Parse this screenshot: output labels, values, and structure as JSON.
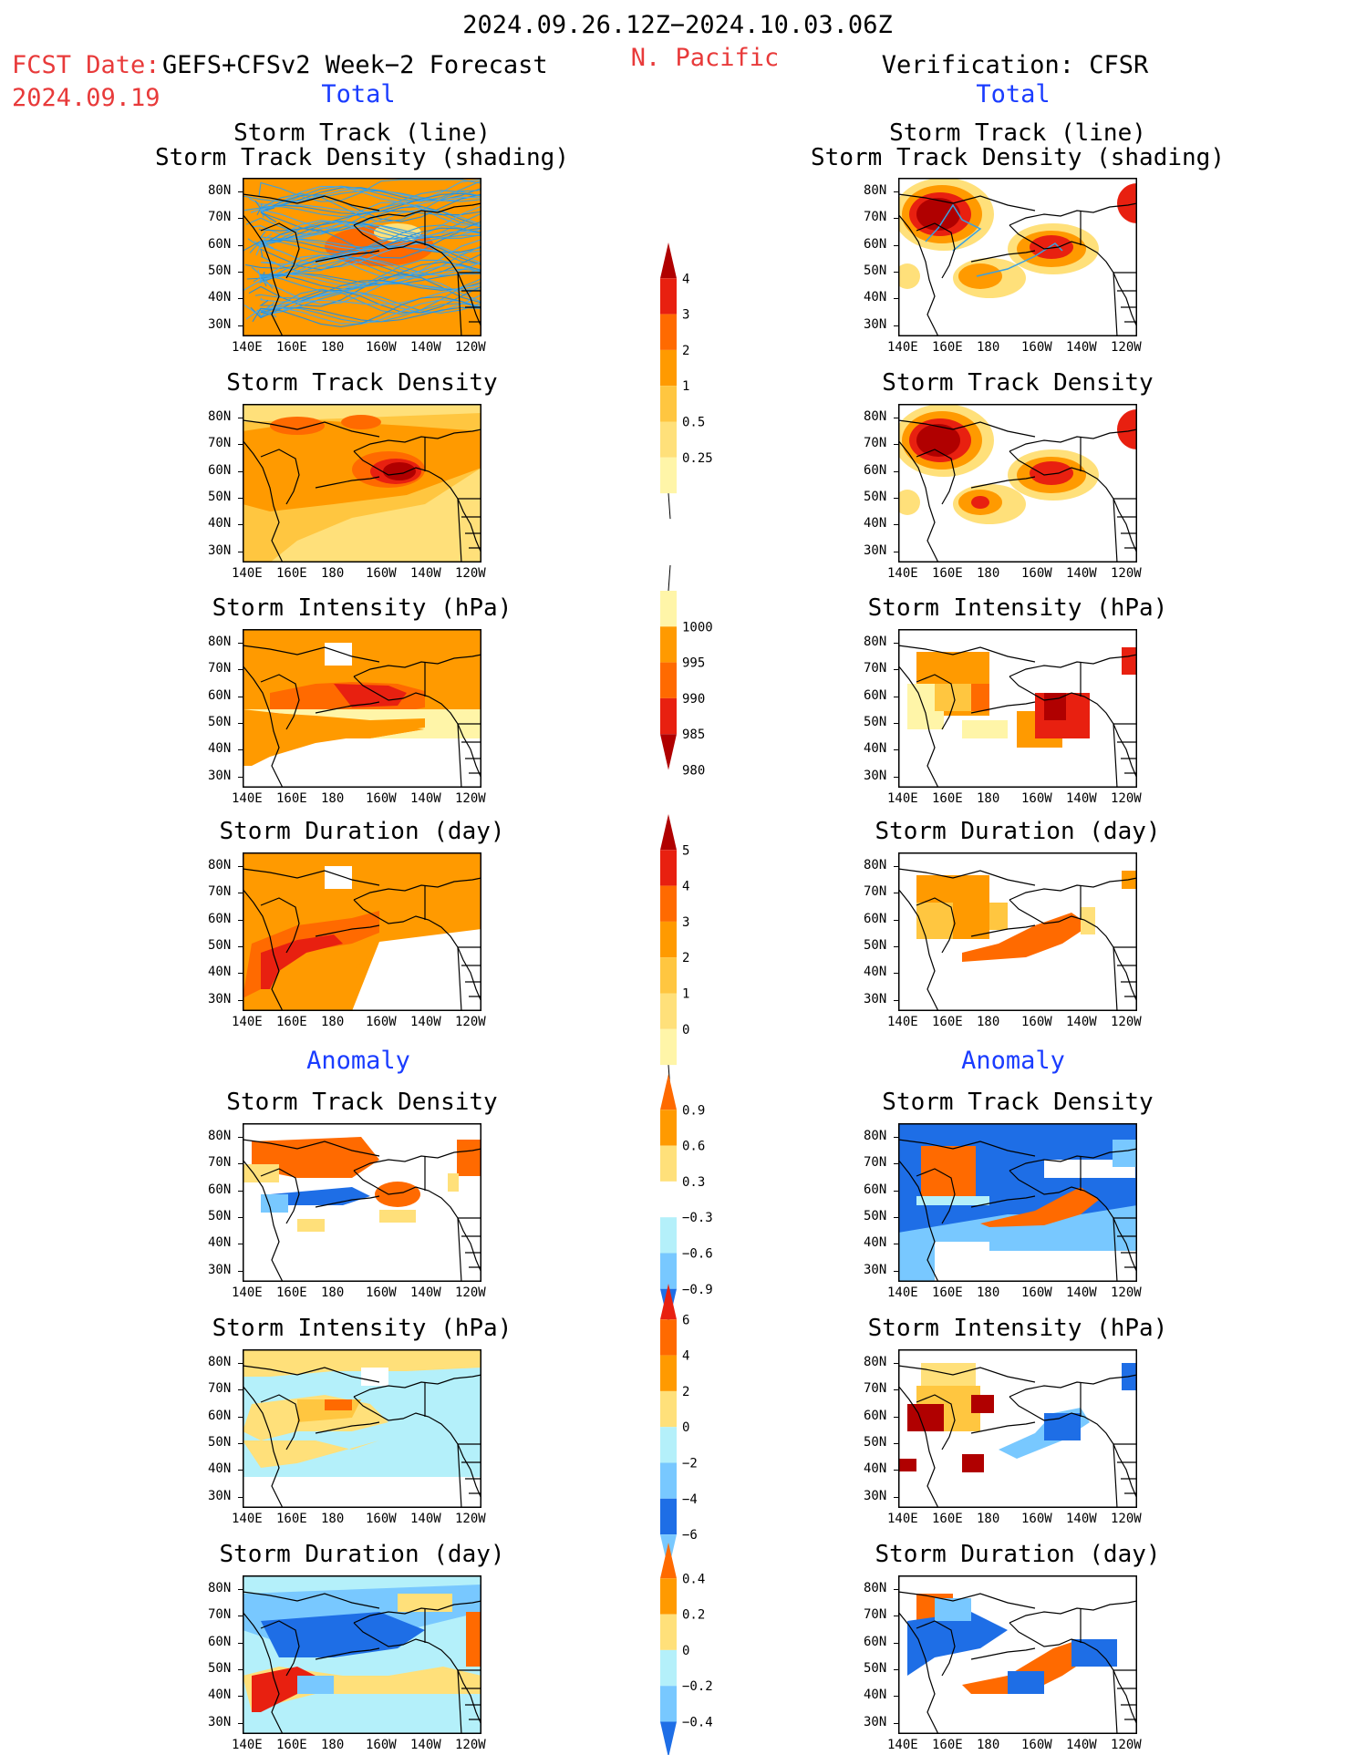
{
  "header": {
    "period": "2024.09.26.12Z−2024.10.03.06Z",
    "fcst_label": "FCST Date:",
    "model": "GEFS+CFSv2 Week−2 Forecast",
    "fcst_date": "2024.09.19",
    "region": "N. Pacific",
    "verification": "Verification: CFSR",
    "total_left": "Total",
    "total_right": "Total",
    "anomaly_left": "Anomaly",
    "anomaly_right": "Anomaly"
  },
  "colors": {
    "pale_yellow": "#fff5a8",
    "light_yellow": "#ffe07a",
    "yellow_orange": "#ffc640",
    "orange": "#ff9a00",
    "dark_orange": "#ff6a00",
    "red": "#e82010",
    "dark_red": "#b00000",
    "cyan_light": "#b4f0fa",
    "light_blue": "#78c8ff",
    "blue": "#1e6ee6",
    "track_line": "#3aa0e0"
  },
  "chart_data": [
    {
      "type": "heatmap",
      "panel": "forecast-total-track",
      "title": "Storm Track (line)",
      "subtitle": "Storm Track Density (shading)",
      "xticks": [
        "140E",
        "160E",
        "180",
        "160W",
        "140W",
        "120W"
      ],
      "yticks": [
        "80N",
        "70N",
        "60N",
        "50N",
        "40N",
        "30N"
      ]
    },
    {
      "type": "heatmap",
      "panel": "verif-total-track",
      "title": "Storm Track (line)",
      "subtitle": "Storm Track Density (shading)",
      "xticks": [
        "140E",
        "160E",
        "180",
        "160W",
        "140W",
        "120W"
      ],
      "yticks": [
        "80N",
        "70N",
        "60N",
        "50N",
        "40N",
        "30N"
      ]
    },
    {
      "type": "heatmap",
      "panel": "forecast-total-density",
      "title": "Storm Track Density",
      "xticks": [
        "140E",
        "160E",
        "180",
        "160W",
        "140W",
        "120W"
      ],
      "yticks": [
        "80N",
        "70N",
        "60N",
        "50N",
        "40N",
        "30N"
      ]
    },
    {
      "type": "heatmap",
      "panel": "verif-total-density",
      "title": "Storm Track Density",
      "xticks": [
        "140E",
        "160E",
        "180",
        "160W",
        "140W",
        "120W"
      ],
      "yticks": [
        "80N",
        "70N",
        "60N",
        "50N",
        "40N",
        "30N"
      ]
    },
    {
      "type": "heatmap",
      "panel": "forecast-total-intensity",
      "title": "Storm Intensity (hPa)",
      "xticks": [
        "140E",
        "160E",
        "180",
        "160W",
        "140W",
        "120W"
      ],
      "yticks": [
        "80N",
        "70N",
        "60N",
        "50N",
        "40N",
        "30N"
      ]
    },
    {
      "type": "heatmap",
      "panel": "verif-total-intensity",
      "title": "Storm Intensity (hPa)",
      "xticks": [
        "140E",
        "160E",
        "180",
        "160W",
        "140W",
        "120W"
      ],
      "yticks": [
        "80N",
        "70N",
        "60N",
        "50N",
        "40N",
        "30N"
      ]
    },
    {
      "type": "heatmap",
      "panel": "forecast-total-duration",
      "title": "Storm Duration (day)",
      "xticks": [
        "140E",
        "160E",
        "180",
        "160W",
        "140W",
        "120W"
      ],
      "yticks": [
        "80N",
        "70N",
        "60N",
        "50N",
        "40N",
        "30N"
      ]
    },
    {
      "type": "heatmap",
      "panel": "verif-total-duration",
      "title": "Storm Duration (day)",
      "xticks": [
        "140E",
        "160E",
        "180",
        "160W",
        "140W",
        "120W"
      ],
      "yticks": [
        "80N",
        "70N",
        "60N",
        "50N",
        "40N",
        "30N"
      ]
    },
    {
      "type": "heatmap",
      "panel": "forecast-anom-density",
      "title": "Storm Track Density",
      "xticks": [
        "140E",
        "160E",
        "180",
        "160W",
        "140W",
        "120W"
      ],
      "yticks": [
        "80N",
        "70N",
        "60N",
        "50N",
        "40N",
        "30N"
      ]
    },
    {
      "type": "heatmap",
      "panel": "verif-anom-density",
      "title": "Storm Track Density",
      "xticks": [
        "140E",
        "160E",
        "180",
        "160W",
        "140W",
        "120W"
      ],
      "yticks": [
        "80N",
        "70N",
        "60N",
        "50N",
        "40N",
        "30N"
      ]
    },
    {
      "type": "heatmap",
      "panel": "forecast-anom-intensity",
      "title": "Storm Intensity (hPa)",
      "xticks": [
        "140E",
        "160E",
        "180",
        "160W",
        "140W",
        "120W"
      ],
      "yticks": [
        "80N",
        "70N",
        "60N",
        "50N",
        "40N",
        "30N"
      ]
    },
    {
      "type": "heatmap",
      "panel": "verif-anom-intensity",
      "title": "Storm Intensity (hPa)",
      "xticks": [
        "140E",
        "160E",
        "180",
        "160W",
        "140W",
        "120W"
      ],
      "yticks": [
        "80N",
        "70N",
        "60N",
        "50N",
        "40N",
        "30N"
      ]
    },
    {
      "type": "heatmap",
      "panel": "forecast-anom-duration",
      "title": "Storm Duration (day)",
      "xticks": [
        "140E",
        "160E",
        "180",
        "160W",
        "140W",
        "120W"
      ],
      "yticks": [
        "80N",
        "70N",
        "60N",
        "50N",
        "40N",
        "30N"
      ]
    },
    {
      "type": "heatmap",
      "panel": "verif-anom-duration",
      "title": "Storm Duration (day)",
      "xticks": [
        "140E",
        "160E",
        "180",
        "160W",
        "140W",
        "120W"
      ],
      "yticks": [
        "80N",
        "70N",
        "60N",
        "50N",
        "40N",
        "30N"
      ]
    }
  ],
  "colorbars": [
    {
      "name": "track-density",
      "labels": [
        "4",
        "3",
        "2",
        "1",
        "0.5",
        "0.25"
      ]
    },
    {
      "name": "intensity",
      "labels": [
        "1000",
        "995",
        "990",
        "985",
        "980"
      ]
    },
    {
      "name": "duration",
      "labels": [
        "5",
        "4",
        "3",
        "2",
        "1",
        "0"
      ]
    },
    {
      "name": "anom-density",
      "labels": [
        "0.9",
        "0.6",
        "0.3",
        "−0.3",
        "−0.6",
        "−0.9"
      ]
    },
    {
      "name": "anom-intensity",
      "labels": [
        "6",
        "4",
        "2",
        "0",
        "−2",
        "−4",
        "−6"
      ]
    },
    {
      "name": "anom-duration",
      "labels": [
        "0.4",
        "0.2",
        "0",
        "−0.2",
        "−0.4"
      ]
    }
  ]
}
